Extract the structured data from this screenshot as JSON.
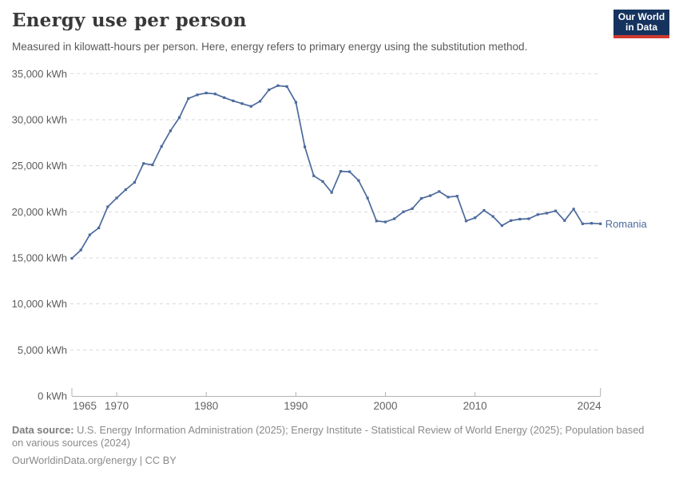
{
  "header": {
    "title": "Energy use per person",
    "subtitle": "Measured in kilowatt-hours per person. Here, energy refers to primary energy using the substitution method.",
    "logo": {
      "line1": "Our World",
      "line2": "in Data",
      "bg_color": "#15335E",
      "accent_color": "#CF3A2F"
    }
  },
  "chart_data": {
    "type": "line",
    "title": "Energy use per person",
    "unit": "kWh",
    "ylabel": "",
    "xlabel": "",
    "ylim": [
      0,
      35000
    ],
    "ytick_step": 5000,
    "ytick_suffix": " kWh",
    "xticks": [
      1965,
      1970,
      1980,
      1990,
      2000,
      2010,
      2024
    ],
    "grid": "horizontal-dashed",
    "legend_position": "end-of-line-label",
    "x": [
      1965,
      1966,
      1967,
      1968,
      1969,
      1970,
      1971,
      1972,
      1973,
      1974,
      1975,
      1976,
      1977,
      1978,
      1979,
      1980,
      1981,
      1982,
      1983,
      1984,
      1985,
      1986,
      1987,
      1988,
      1989,
      1990,
      1991,
      1992,
      1993,
      1994,
      1995,
      1996,
      1997,
      1998,
      1999,
      2000,
      2001,
      2002,
      2003,
      2004,
      2005,
      2006,
      2007,
      2008,
      2009,
      2010,
      2011,
      2012,
      2013,
      2014,
      2015,
      2016,
      2017,
      2018,
      2019,
      2020,
      2021,
      2022,
      2023,
      2024
    ],
    "series": [
      {
        "name": "Romania",
        "color": "#4C6A9C",
        "values": [
          14950,
          15850,
          17500,
          18250,
          20550,
          21500,
          22400,
          23200,
          25250,
          25100,
          27100,
          28800,
          30250,
          32300,
          32700,
          32900,
          32800,
          32400,
          32050,
          31750,
          31450,
          32000,
          33250,
          33700,
          33600,
          31900,
          27050,
          23900,
          23300,
          22100,
          24400,
          24350,
          23400,
          21500,
          19000,
          18900,
          19250,
          20000,
          20350,
          21450,
          21750,
          22200,
          21600,
          21700,
          19000,
          19350,
          20150,
          19500,
          18500,
          19050,
          19200,
          19250,
          19700,
          19850,
          20100,
          19050,
          20300,
          18700,
          18750,
          18700
        ]
      }
    ],
    "colors": {
      "gridline": "#dadada",
      "axis": "#b3b3b3",
      "ytick_label": "#5b5b5b",
      "xtick_label": "#636363"
    }
  },
  "footer": {
    "sources_label": "Data source:",
    "sources_line1": " U.S. Energy Information Administration (2025); Energy Institute - Statistical Review of World Energy (2025); Population based",
    "sources_line2": "on various sources (2024)",
    "license_line": "OurWorldinData.org/energy | CC BY"
  }
}
